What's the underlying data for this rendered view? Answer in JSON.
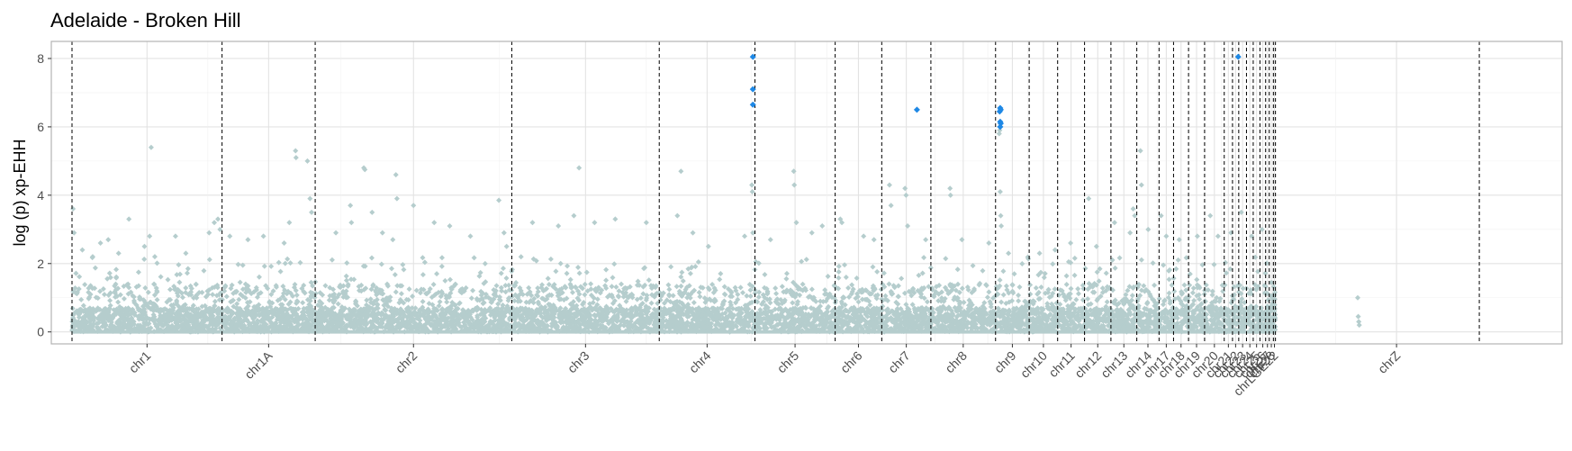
{
  "chart_data": {
    "type": "scatter",
    "title": "Adelaide - Broken Hill",
    "xlabel": "",
    "ylabel": "log (p) xp-EHH",
    "ylim": [
      -0.35,
      8.5
    ],
    "yticks": [
      0,
      2,
      4,
      6,
      8
    ],
    "xlim": [
      -4,
      288
    ],
    "grid": true,
    "legend": "none",
    "colors": {
      "background": "#ffffff",
      "grid": "#e3e3e3",
      "panel_border": "#b3b3b3",
      "background_point": "#b5cdcd",
      "significant_point": "#1e88e5",
      "boundary_line": "#000000"
    },
    "chromosomes": [
      {
        "name": "chr1",
        "start": 0,
        "end": 29
      },
      {
        "name": "chr1A",
        "start": 29,
        "end": 47
      },
      {
        "name": "chr2",
        "start": 47,
        "end": 85
      },
      {
        "name": "chr3",
        "start": 85,
        "end": 113.5
      },
      {
        "name": "chr4",
        "start": 113.5,
        "end": 132
      },
      {
        "name": "chr5",
        "start": 132,
        "end": 147.5
      },
      {
        "name": "chr6",
        "start": 147.5,
        "end": 156.5
      },
      {
        "name": "chr7",
        "start": 156.5,
        "end": 166
      },
      {
        "name": "chr8",
        "start": 166,
        "end": 178.5
      },
      {
        "name": "chr9",
        "start": 178.5,
        "end": 185
      },
      {
        "name": "chr10",
        "start": 185,
        "end": 190.5
      },
      {
        "name": "chr11",
        "start": 190.5,
        "end": 195.7
      },
      {
        "name": "chr12",
        "start": 195.7,
        "end": 200.8
      },
      {
        "name": "chr13",
        "start": 200.8,
        "end": 205.8
      },
      {
        "name": "chr14",
        "start": 205.8,
        "end": 210.1
      },
      {
        "name": "chr17",
        "start": 210.1,
        "end": 212.9
      },
      {
        "name": "chr18",
        "start": 212.9,
        "end": 215.8
      },
      {
        "name": "chr19",
        "start": 215.8,
        "end": 218.9
      },
      {
        "name": "chr20",
        "start": 218.9,
        "end": 222.7
      },
      {
        "name": "chr21",
        "start": 222.7,
        "end": 224.3
      },
      {
        "name": "chr22",
        "start": 224.3,
        "end": 225.5
      },
      {
        "name": "chr23",
        "start": 225.5,
        "end": 227
      },
      {
        "name": "chr24",
        "start": 227,
        "end": 228.3
      },
      {
        "name": "chr25",
        "start": 228.3,
        "end": 229.6
      },
      {
        "name": "chr26",
        "start": 229.6,
        "end": 230.7
      },
      {
        "name": "chr27",
        "start": 230.7,
        "end": 231.4
      },
      {
        "name": "chr28",
        "start": 231.4,
        "end": 232.2
      },
      {
        "name": "chrLGE22",
        "start": 232.2,
        "end": 232.6
      },
      {
        "name": "chrZ",
        "start": 240,
        "end": 272
      }
    ],
    "boundaries": [
      0,
      29,
      47,
      85,
      113.5,
      132,
      147.5,
      156.5,
      166,
      178.5,
      185,
      190.5,
      195.7,
      200.8,
      205.8,
      210.1,
      212.9,
      215.8,
      218.9,
      222.7,
      224.3,
      225.5,
      227,
      228.3,
      229.6,
      230.7,
      231.4,
      232.2,
      232.6,
      272
    ],
    "x_tick_labels": [
      "chr1",
      "chr1A",
      "chr2",
      "chr3",
      "chr4",
      "chr5",
      "chr6",
      "chr7",
      "chr8",
      "chr9",
      "chr10",
      "chr11",
      "chr12",
      "chr13",
      "chr14",
      "chr17",
      "chr18",
      "chr19",
      "chr20",
      "chr21",
      "chr22",
      "chr23",
      "chr24",
      "chr25",
      "chr26",
      "chr27",
      "chr28",
      "chrLGE22",
      "chrZ"
    ],
    "background_points_note_free": true,
    "background_series": [
      {
        "x": 0.2,
        "y": 3.6
      },
      {
        "x": 0.4,
        "y": 2.9
      },
      {
        "x": 2,
        "y": 2.4
      },
      {
        "x": 4,
        "y": 2.2
      },
      {
        "x": 5.5,
        "y": 2.6
      },
      {
        "x": 7,
        "y": 2.7
      },
      {
        "x": 9,
        "y": 2.3
      },
      {
        "x": 11,
        "y": 3.3
      },
      {
        "x": 14,
        "y": 2.5
      },
      {
        "x": 15,
        "y": 2.8
      },
      {
        "x": 15.3,
        "y": 5.4
      },
      {
        "x": 16,
        "y": 2.2
      },
      {
        "x": 20,
        "y": 2.8
      },
      {
        "x": 22,
        "y": 2.3
      },
      {
        "x": 26.5,
        "y": 2.9
      },
      {
        "x": 27.5,
        "y": 3.2
      },
      {
        "x": 28.2,
        "y": 3.3
      },
      {
        "x": 28.6,
        "y": 3.0
      },
      {
        "x": 30.5,
        "y": 2.8
      },
      {
        "x": 34,
        "y": 2.7
      },
      {
        "x": 37,
        "y": 2.8
      },
      {
        "x": 41,
        "y": 2.6
      },
      {
        "x": 42,
        "y": 3.2
      },
      {
        "x": 43.2,
        "y": 5.3
      },
      {
        "x": 43.3,
        "y": 5.1
      },
      {
        "x": 45.5,
        "y": 5.0
      },
      {
        "x": 46,
        "y": 3.9
      },
      {
        "x": 46.3,
        "y": 3.5
      },
      {
        "x": 51,
        "y": 2.9
      },
      {
        "x": 53.8,
        "y": 3.7
      },
      {
        "x": 54,
        "y": 3.2
      },
      {
        "x": 56.4,
        "y": 4.8
      },
      {
        "x": 56.6,
        "y": 4.75
      },
      {
        "x": 58,
        "y": 3.5
      },
      {
        "x": 60,
        "y": 2.9
      },
      {
        "x": 62,
        "y": 2.7
      },
      {
        "x": 62.6,
        "y": 4.6
      },
      {
        "x": 62.8,
        "y": 3.9
      },
      {
        "x": 66,
        "y": 3.7
      },
      {
        "x": 70,
        "y": 3.2
      },
      {
        "x": 73,
        "y": 3.1
      },
      {
        "x": 77,
        "y": 2.8
      },
      {
        "x": 82.5,
        "y": 3.85
      },
      {
        "x": 83.5,
        "y": 2.9
      },
      {
        "x": 84,
        "y": 2.5
      },
      {
        "x": 89,
        "y": 3.2
      },
      {
        "x": 94,
        "y": 3.1
      },
      {
        "x": 97,
        "y": 3.4
      },
      {
        "x": 98,
        "y": 4.8
      },
      {
        "x": 101,
        "y": 3.2
      },
      {
        "x": 105,
        "y": 3.3
      },
      {
        "x": 111,
        "y": 3.2
      },
      {
        "x": 117,
        "y": 3.4
      },
      {
        "x": 117.7,
        "y": 4.7
      },
      {
        "x": 120,
        "y": 2.9
      },
      {
        "x": 123,
        "y": 2.5
      },
      {
        "x": 130,
        "y": 2.8
      },
      {
        "x": 131.4,
        "y": 4.3
      },
      {
        "x": 131.5,
        "y": 4.1
      },
      {
        "x": 131.6,
        "y": 2.9
      },
      {
        "x": 135,
        "y": 2.7
      },
      {
        "x": 139.5,
        "y": 4.7
      },
      {
        "x": 139.6,
        "y": 4.3
      },
      {
        "x": 140,
        "y": 3.2
      },
      {
        "x": 143,
        "y": 2.9
      },
      {
        "x": 145,
        "y": 3.1
      },
      {
        "x": 148.5,
        "y": 3.3
      },
      {
        "x": 148.8,
        "y": 3.2
      },
      {
        "x": 153,
        "y": 2.8
      },
      {
        "x": 155,
        "y": 2.7
      },
      {
        "x": 158,
        "y": 4.3
      },
      {
        "x": 158.3,
        "y": 3.7
      },
      {
        "x": 161,
        "y": 4.2
      },
      {
        "x": 161.2,
        "y": 4.0
      },
      {
        "x": 161.5,
        "y": 3.1
      },
      {
        "x": 165,
        "y": 2.7
      },
      {
        "x": 169.7,
        "y": 4.2
      },
      {
        "x": 169.8,
        "y": 4.0
      },
      {
        "x": 172,
        "y": 2.7
      },
      {
        "x": 177.2,
        "y": 2.6
      },
      {
        "x": 179.2,
        "y": 5.8
      },
      {
        "x": 179.3,
        "y": 5.9
      },
      {
        "x": 179.4,
        "y": 4.1
      },
      {
        "x": 179.5,
        "y": 3.4
      },
      {
        "x": 179.6,
        "y": 3.1
      },
      {
        "x": 181,
        "y": 2.3
      },
      {
        "x": 187,
        "y": 2.3
      },
      {
        "x": 190,
        "y": 2.4
      },
      {
        "x": 193,
        "y": 2.6
      },
      {
        "x": 196.5,
        "y": 3.9
      },
      {
        "x": 198,
        "y": 2.5
      },
      {
        "x": 201.5,
        "y": 3.2
      },
      {
        "x": 204.5,
        "y": 2.9
      },
      {
        "x": 205.1,
        "y": 3.6
      },
      {
        "x": 205.4,
        "y": 3.4
      },
      {
        "x": 206.5,
        "y": 5.3
      },
      {
        "x": 206.7,
        "y": 4.3
      },
      {
        "x": 208,
        "y": 3.0
      },
      {
        "x": 210.5,
        "y": 3.4
      },
      {
        "x": 211.5,
        "y": 2.8
      },
      {
        "x": 214,
        "y": 2.7
      },
      {
        "x": 217.5,
        "y": 2.8
      },
      {
        "x": 220,
        "y": 3.4
      },
      {
        "x": 221.5,
        "y": 2.8
      },
      {
        "x": 224,
        "y": 2.9
      },
      {
        "x": 226,
        "y": 3.5
      },
      {
        "x": 228,
        "y": 2.8
      },
      {
        "x": 230,
        "y": 3.0
      },
      {
        "x": 248.5,
        "y": 1.0
      },
      {
        "x": 248.6,
        "y": 0.45
      },
      {
        "x": 248.7,
        "y": 0.3
      },
      {
        "x": 248.8,
        "y": 0.2
      }
    ],
    "significant_series": [
      {
        "x": 131.6,
        "y": 8.05
      },
      {
        "x": 131.6,
        "y": 7.1
      },
      {
        "x": 131.6,
        "y": 6.65
      },
      {
        "x": 163.3,
        "y": 6.5
      },
      {
        "x": 179.4,
        "y": 6.55
      },
      {
        "x": 179.5,
        "y": 6.5
      },
      {
        "x": 179.3,
        "y": 6.45
      },
      {
        "x": 179.4,
        "y": 6.15
      },
      {
        "x": 179.5,
        "y": 6.1
      },
      {
        "x": 179.4,
        "y": 6.0
      },
      {
        "x": 225.4,
        "y": 8.05
      }
    ]
  }
}
